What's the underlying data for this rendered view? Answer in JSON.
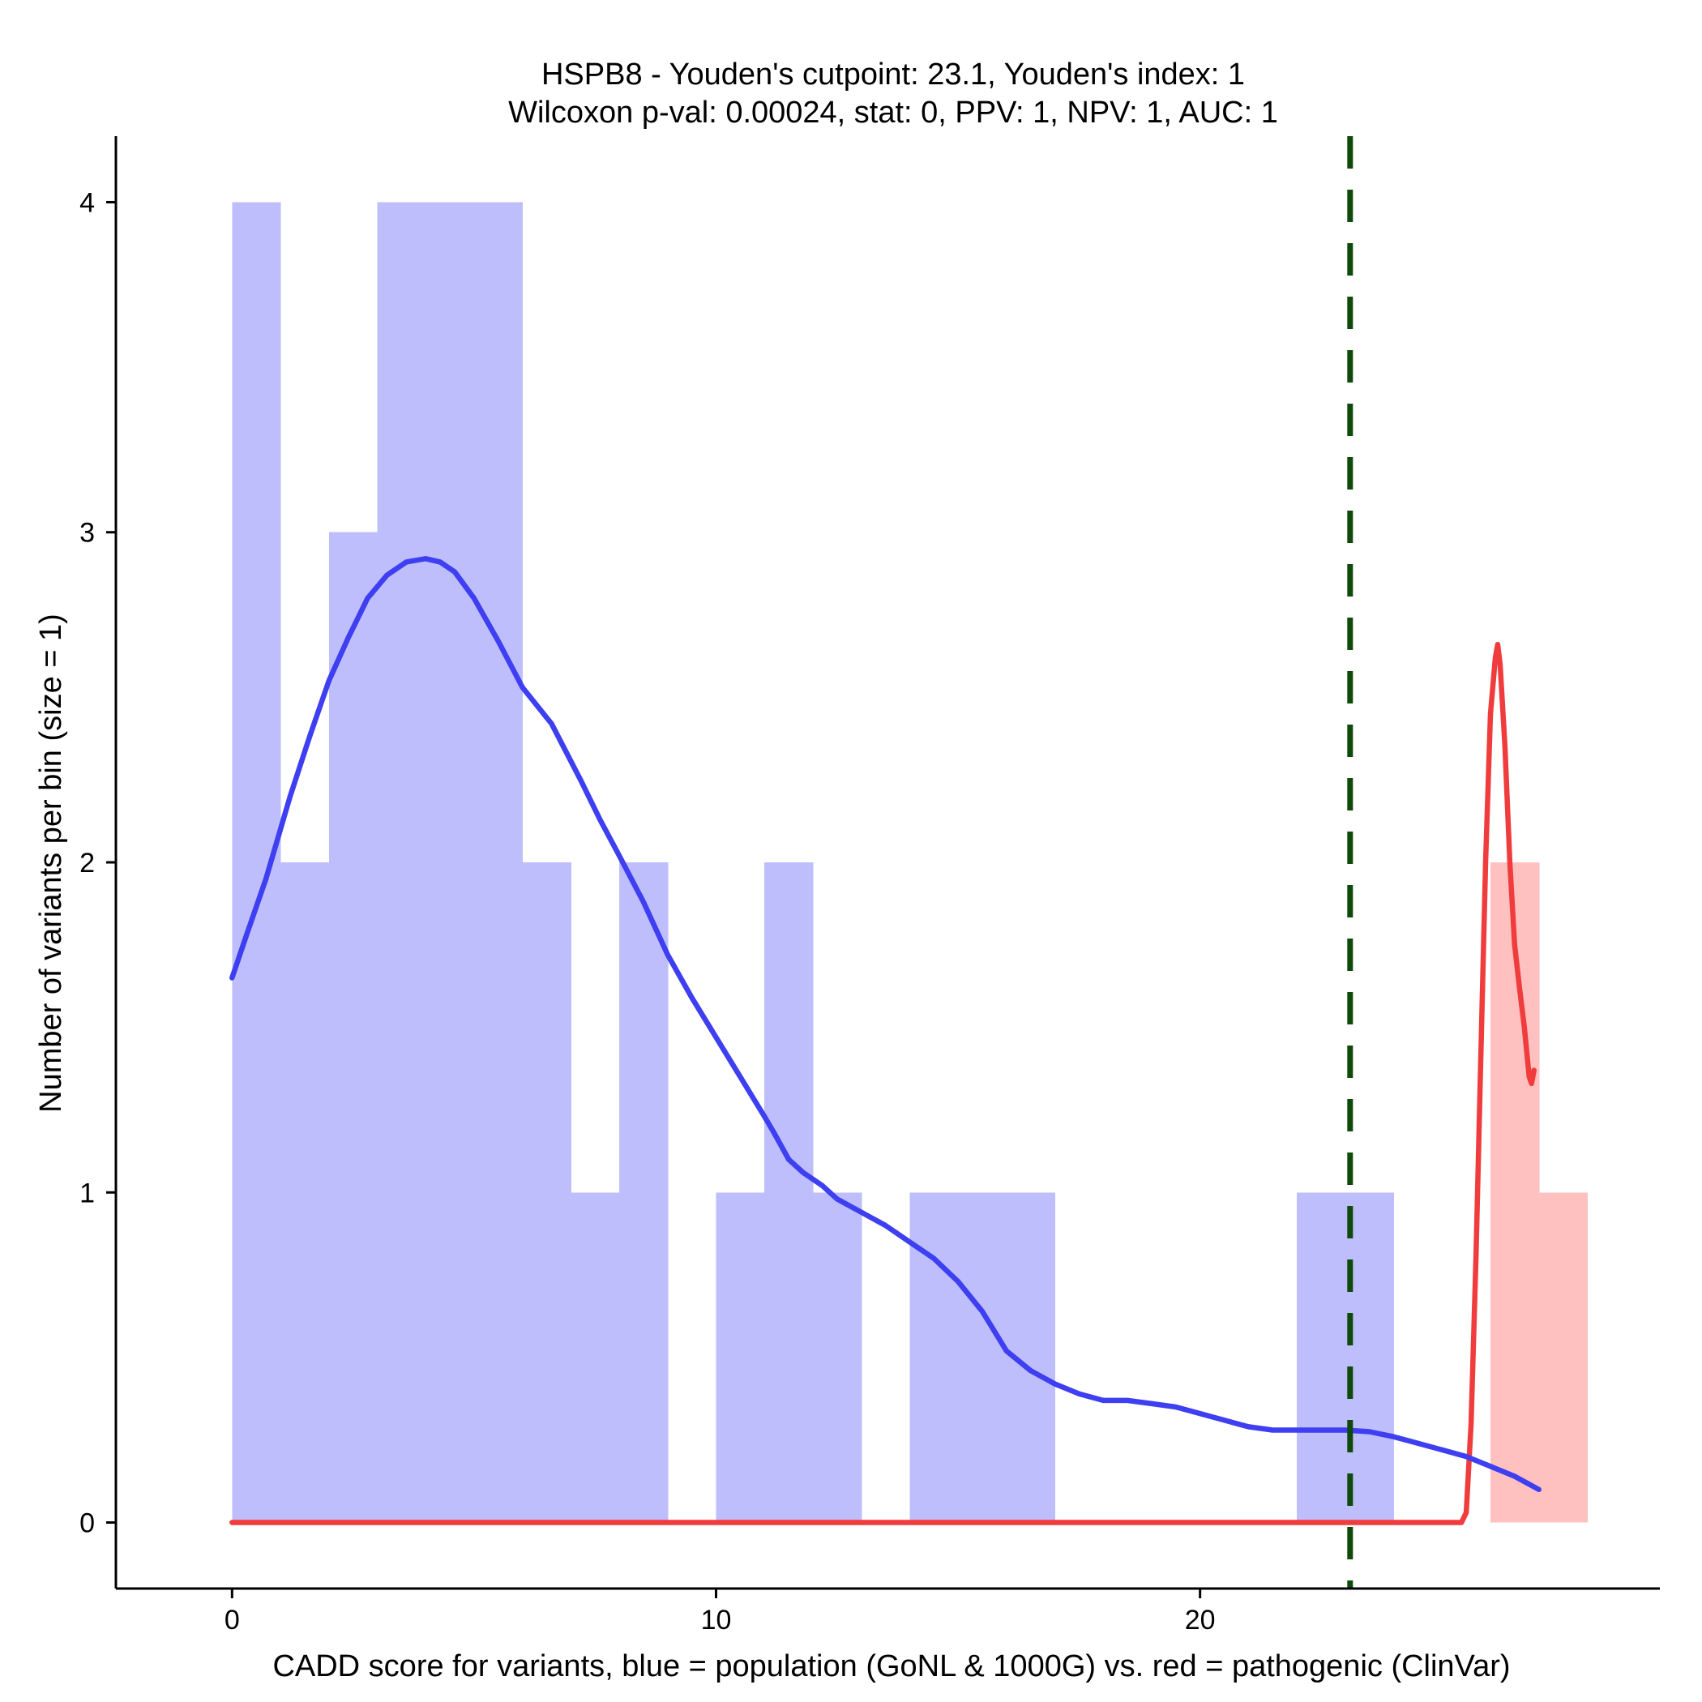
{
  "chart_data": {
    "type": "histogram",
    "title": "HSPB8 - Youden's cutpoint: 23.1, Youden's index: 1",
    "subtitle": "Wilcoxon p-val: 0.00024, stat: 0, PPV: 1, NPV: 1, AUC: 1",
    "xlabel": "CADD score for variants, blue = population (GoNL & 1000G) vs. red = pathogenic (ClinVar)",
    "ylabel": "Number of variants per bin (size = 1)",
    "xlim": [
      -2.4,
      29.5
    ],
    "ylim": [
      -0.2,
      4.2
    ],
    "xticks": [
      0,
      10,
      20
    ],
    "yticks": [
      0,
      1,
      2,
      3,
      4
    ],
    "bin_size": 1,
    "grid": false,
    "cutpoint": 23.1,
    "series": [
      {
        "group": "population",
        "color": "#bebefc",
        "bins": [
          {
            "start": 0,
            "count": 4
          },
          {
            "start": 1,
            "count": 2
          },
          {
            "start": 2,
            "count": 3
          },
          {
            "start": 3,
            "count": 4
          },
          {
            "start": 4,
            "count": 4
          },
          {
            "start": 5,
            "count": 4
          },
          {
            "start": 6,
            "count": 2
          },
          {
            "start": 7,
            "count": 1
          },
          {
            "start": 8,
            "count": 2
          },
          {
            "start": 10,
            "count": 1
          },
          {
            "start": 11,
            "count": 2
          },
          {
            "start": 12,
            "count": 1
          },
          {
            "start": 14,
            "count": 1
          },
          {
            "start": 15,
            "count": 1
          },
          {
            "start": 16,
            "count": 1
          },
          {
            "start": 22,
            "count": 1
          },
          {
            "start": 23,
            "count": 1
          }
        ],
        "density_color": "#3f3ff2",
        "density": [
          [
            0,
            1.65
          ],
          [
            0.3,
            1.78
          ],
          [
            0.7,
            1.95
          ],
          [
            1.2,
            2.2
          ],
          [
            1.6,
            2.38
          ],
          [
            2,
            2.55
          ],
          [
            2.4,
            2.68
          ],
          [
            2.8,
            2.8
          ],
          [
            3.2,
            2.87
          ],
          [
            3.6,
            2.91
          ],
          [
            4.0,
            2.92
          ],
          [
            4.3,
            2.91
          ],
          [
            4.6,
            2.88
          ],
          [
            5.0,
            2.8
          ],
          [
            5.5,
            2.67
          ],
          [
            6.0,
            2.53
          ],
          [
            6.6,
            2.42
          ],
          [
            7.2,
            2.25
          ],
          [
            7.6,
            2.13
          ],
          [
            8.0,
            2.02
          ],
          [
            8.5,
            1.88
          ],
          [
            9.0,
            1.72
          ],
          [
            9.5,
            1.59
          ],
          [
            10.0,
            1.47
          ],
          [
            10.5,
            1.35
          ],
          [
            11.0,
            1.23
          ],
          [
            11.2,
            1.18
          ],
          [
            11.5,
            1.1
          ],
          [
            11.8,
            1.06
          ],
          [
            12.2,
            1.02
          ],
          [
            12.5,
            0.98
          ],
          [
            13.0,
            0.94
          ],
          [
            13.5,
            0.9
          ],
          [
            14.0,
            0.85
          ],
          [
            14.5,
            0.8
          ],
          [
            15.0,
            0.73
          ],
          [
            15.5,
            0.64
          ],
          [
            16.0,
            0.52
          ],
          [
            16.5,
            0.46
          ],
          [
            17.0,
            0.42
          ],
          [
            17.5,
            0.39
          ],
          [
            18.0,
            0.37
          ],
          [
            18.5,
            0.37
          ],
          [
            19.0,
            0.36
          ],
          [
            19.5,
            0.35
          ],
          [
            20.0,
            0.33
          ],
          [
            20.5,
            0.31
          ],
          [
            21.0,
            0.29
          ],
          [
            21.5,
            0.28
          ],
          [
            22.0,
            0.28
          ],
          [
            22.5,
            0.28
          ],
          [
            23.0,
            0.28
          ],
          [
            23.5,
            0.275
          ],
          [
            24.0,
            0.26
          ],
          [
            24.5,
            0.24
          ],
          [
            25.0,
            0.22
          ],
          [
            25.5,
            0.2
          ],
          [
            26.0,
            0.17
          ],
          [
            26.5,
            0.14
          ],
          [
            27.0,
            0.1
          ]
        ]
      },
      {
        "group": "pathogenic",
        "color": "#ffc0c0",
        "bins": [
          {
            "start": 26,
            "count": 2
          },
          {
            "start": 27,
            "count": 1
          }
        ],
        "density_color": "#f03c3c",
        "density": [
          [
            0,
            0
          ],
          [
            5,
            0
          ],
          [
            10,
            0
          ],
          [
            15,
            0
          ],
          [
            20,
            0
          ],
          [
            25,
            0
          ],
          [
            25.4,
            0
          ],
          [
            25.5,
            0.03
          ],
          [
            25.6,
            0.3
          ],
          [
            25.7,
            0.8
          ],
          [
            25.8,
            1.4
          ],
          [
            25.9,
            2.0
          ],
          [
            26.0,
            2.45
          ],
          [
            26.1,
            2.62
          ],
          [
            26.15,
            2.66
          ],
          [
            26.2,
            2.6
          ],
          [
            26.3,
            2.35
          ],
          [
            26.4,
            2.0
          ],
          [
            26.5,
            1.75
          ],
          [
            26.6,
            1.62
          ],
          [
            26.7,
            1.5
          ],
          [
            26.8,
            1.35
          ],
          [
            26.85,
            1.33
          ],
          [
            26.9,
            1.37
          ]
        ]
      }
    ]
  }
}
